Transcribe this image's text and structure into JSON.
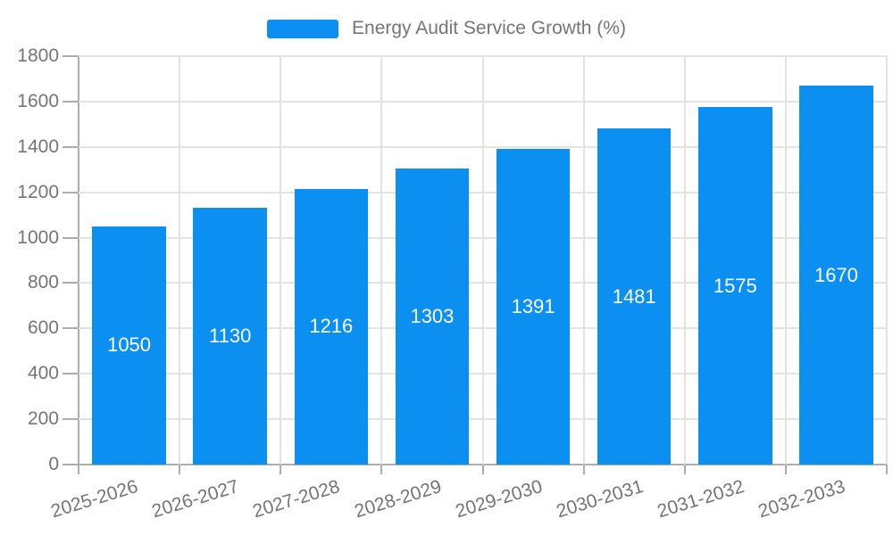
{
  "legend": {
    "label": "Energy Audit Service Growth (%)"
  },
  "chart_data": {
    "type": "bar",
    "title": "Energy Audit Service Growth (%)",
    "xlabel": "",
    "ylabel": "",
    "categories": [
      "2025-2026",
      "2026-2027",
      "2027-2028",
      "2028-2029",
      "2029-2030",
      "2030-2031",
      "2031-2032",
      "2032-2033"
    ],
    "values": [
      1050,
      1130,
      1216,
      1303,
      1391,
      1481,
      1575,
      1670
    ],
    "ylim": [
      0,
      1800
    ],
    "yticks": [
      0,
      200,
      400,
      600,
      800,
      1000,
      1200,
      1400,
      1600,
      1800
    ],
    "grid": true,
    "legend_position": "top-center",
    "colors": {
      "bar": "#0b90f2",
      "bar_value_text": "#ffffff",
      "axis_text": "#757575",
      "grid_line": "#e3e3e3",
      "axis_line": "#adadad",
      "background": "#ffffff"
    }
  }
}
